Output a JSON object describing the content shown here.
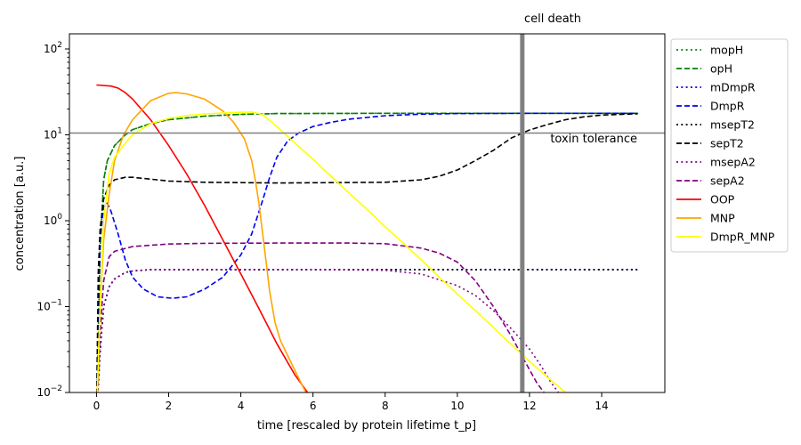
{
  "chart_data": {
    "type": "line",
    "xlabel": "time [rescaled by protein lifetime t_p]",
    "ylabel": "concentration [a.u.]",
    "xlim": [
      -0.75,
      15.75
    ],
    "ylim": [
      0.01,
      150
    ],
    "yscale": "log",
    "x_ticks": [
      0,
      2,
      4,
      6,
      8,
      10,
      12,
      14
    ],
    "y_ticks": [
      {
        "value": 0.01,
        "base": "10",
        "exp": "−2"
      },
      {
        "value": 0.1,
        "base": "10",
        "exp": "−1"
      },
      {
        "value": 1,
        "base": "10",
        "exp": "0"
      },
      {
        "value": 10,
        "base": "10",
        "exp": "1"
      },
      {
        "value": 100,
        "base": "10",
        "exp": "2"
      }
    ],
    "grid": false,
    "legend_position": "outside-right",
    "annotations": {
      "cell_death": {
        "label": "cell death",
        "x": 11.8
      },
      "toxin_tolerance": {
        "label": "toxin tolerance",
        "y": 10.5
      }
    },
    "series": [
      {
        "name": "mopH",
        "color": "#008000",
        "dash": "dotted",
        "points": [
          [
            0,
            0.005
          ],
          [
            0.1,
            0.5
          ],
          [
            0.2,
            3
          ],
          [
            0.3,
            5
          ],
          [
            0.5,
            7.5
          ],
          [
            0.8,
            10
          ],
          [
            1,
            11.5
          ],
          [
            1.5,
            13.5
          ],
          [
            2,
            15
          ],
          [
            3,
            16.5
          ],
          [
            4,
            17.3
          ],
          [
            5,
            17.7
          ],
          [
            8,
            17.8
          ],
          [
            15,
            17.8
          ]
        ]
      },
      {
        "name": "opH",
        "color": "#008000",
        "dash": "dashed",
        "points": [
          [
            0,
            0.005
          ],
          [
            0.1,
            0.5
          ],
          [
            0.2,
            3
          ],
          [
            0.3,
            5
          ],
          [
            0.5,
            7.5
          ],
          [
            0.8,
            10
          ],
          [
            1,
            11.5
          ],
          [
            1.5,
            13.5
          ],
          [
            2,
            15
          ],
          [
            3,
            16.5
          ],
          [
            4,
            17.3
          ],
          [
            5,
            17.7
          ],
          [
            8,
            17.8
          ],
          [
            15,
            17.8
          ]
        ]
      },
      {
        "name": "mDmpR",
        "color": "#0000cc",
        "dash": "dotted",
        "points": [
          [
            0,
            0.005
          ],
          [
            0.1,
            0.03
          ],
          [
            0.2,
            0.1
          ],
          [
            0.35,
            0.17
          ],
          [
            0.5,
            0.21
          ],
          [
            0.8,
            0.25
          ],
          [
            1,
            0.26
          ],
          [
            1.5,
            0.27
          ],
          [
            2,
            0.27
          ],
          [
            15,
            0.27
          ]
        ]
      },
      {
        "name": "DmpR",
        "color": "#0000ee",
        "dash": "dashed",
        "points": [
          [
            0,
            0.005
          ],
          [
            0.1,
            0.6
          ],
          [
            0.2,
            1.5
          ],
          [
            0.3,
            1.6
          ],
          [
            0.4,
            1.3
          ],
          [
            0.6,
            0.7
          ],
          [
            0.8,
            0.35
          ],
          [
            1,
            0.22
          ],
          [
            1.3,
            0.16
          ],
          [
            1.7,
            0.13
          ],
          [
            2.1,
            0.125
          ],
          [
            2.5,
            0.13
          ],
          [
            3,
            0.16
          ],
          [
            3.5,
            0.22
          ],
          [
            4,
            0.4
          ],
          [
            4.3,
            0.7
          ],
          [
            4.6,
            1.7
          ],
          [
            4.8,
            3.2
          ],
          [
            5,
            5.5
          ],
          [
            5.3,
            8.5
          ],
          [
            5.6,
            10.5
          ],
          [
            6,
            12.5
          ],
          [
            6.5,
            14
          ],
          [
            7,
            15.2
          ],
          [
            8,
            16.7
          ],
          [
            9,
            17.4
          ],
          [
            10,
            17.7
          ],
          [
            12,
            17.8
          ],
          [
            15,
            17.8
          ]
        ]
      },
      {
        "name": "msepT2",
        "color": "#000000",
        "dash": "dotted",
        "points": [
          [
            0,
            0.005
          ],
          [
            0.1,
            0.03
          ],
          [
            0.2,
            0.1
          ],
          [
            0.35,
            0.17
          ],
          [
            0.5,
            0.21
          ],
          [
            0.8,
            0.25
          ],
          [
            1,
            0.26
          ],
          [
            1.5,
            0.27
          ],
          [
            2,
            0.27
          ],
          [
            15,
            0.27
          ]
        ]
      },
      {
        "name": "sepT2",
        "color": "#000000",
        "dash": "dashed",
        "points": [
          [
            0,
            0.005
          ],
          [
            0.05,
            0.25
          ],
          [
            0.1,
            0.8
          ],
          [
            0.2,
            1.8
          ],
          [
            0.35,
            2.6
          ],
          [
            0.5,
            3
          ],
          [
            0.8,
            3.2
          ],
          [
            1,
            3.2
          ],
          [
            1.5,
            3.05
          ],
          [
            2,
            2.9
          ],
          [
            3,
            2.8
          ],
          [
            5,
            2.75
          ],
          [
            8,
            2.8
          ],
          [
            9,
            3
          ],
          [
            9.5,
            3.3
          ],
          [
            10,
            3.9
          ],
          [
            10.5,
            5
          ],
          [
            11,
            6.6
          ],
          [
            11.5,
            9.2
          ],
          [
            12,
            11.4
          ],
          [
            12.5,
            13.2
          ],
          [
            13,
            15
          ],
          [
            13.5,
            16.2
          ],
          [
            14,
            17
          ],
          [
            15,
            17.6
          ]
        ]
      },
      {
        "name": "msepA2",
        "color": "#800080",
        "dash": "dotted",
        "points": [
          [
            0,
            0.005
          ],
          [
            0.1,
            0.03
          ],
          [
            0.2,
            0.1
          ],
          [
            0.35,
            0.17
          ],
          [
            0.5,
            0.21
          ],
          [
            0.8,
            0.25
          ],
          [
            1,
            0.26
          ],
          [
            1.5,
            0.27
          ],
          [
            3,
            0.27
          ],
          [
            6,
            0.27
          ],
          [
            8,
            0.265
          ],
          [
            9,
            0.24
          ],
          [
            10,
            0.175
          ],
          [
            10.5,
            0.135
          ],
          [
            11,
            0.09
          ],
          [
            11.5,
            0.055
          ],
          [
            12,
            0.032
          ],
          [
            12.3,
            0.021
          ],
          [
            12.6,
            0.013
          ],
          [
            12.8,
            0.01
          ]
        ]
      },
      {
        "name": "sepA2",
        "color": "#800080",
        "dash": "dashed",
        "points": [
          [
            0,
            0.005
          ],
          [
            0.1,
            0.05
          ],
          [
            0.2,
            0.2
          ],
          [
            0.35,
            0.38
          ],
          [
            0.5,
            0.44
          ],
          [
            1,
            0.5
          ],
          [
            2,
            0.535
          ],
          [
            3,
            0.545
          ],
          [
            5,
            0.55
          ],
          [
            7,
            0.55
          ],
          [
            8,
            0.54
          ],
          [
            9,
            0.48
          ],
          [
            9.5,
            0.42
          ],
          [
            10,
            0.33
          ],
          [
            10.5,
            0.2
          ],
          [
            11,
            0.1
          ],
          [
            11.5,
            0.045
          ],
          [
            11.9,
            0.022
          ],
          [
            12.2,
            0.013
          ],
          [
            12.4,
            0.01
          ]
        ]
      },
      {
        "name": "OOP",
        "color": "#ff0000",
        "dash": "solid",
        "points": [
          [
            0,
            38
          ],
          [
            0.4,
            37
          ],
          [
            0.6,
            35
          ],
          [
            0.8,
            31
          ],
          [
            1,
            26
          ],
          [
            1.5,
            15
          ],
          [
            2,
            7.5
          ],
          [
            2.5,
            3.5
          ],
          [
            3,
            1.5
          ],
          [
            3.5,
            0.6
          ],
          [
            4,
            0.24
          ],
          [
            4.5,
            0.095
          ],
          [
            5,
            0.037
          ],
          [
            5.5,
            0.016
          ],
          [
            5.85,
            0.01
          ]
        ]
      },
      {
        "name": "MNP",
        "color": "#ffa500",
        "dash": "solid",
        "points": [
          [
            0,
            0.005
          ],
          [
            0.1,
            0.1
          ],
          [
            0.2,
            0.6
          ],
          [
            0.35,
            2
          ],
          [
            0.5,
            5
          ],
          [
            0.75,
            10
          ],
          [
            1,
            15
          ],
          [
            1.5,
            25
          ],
          [
            2,
            30.5
          ],
          [
            2.2,
            31
          ],
          [
            2.5,
            30
          ],
          [
            3,
            26
          ],
          [
            3.5,
            19
          ],
          [
            3.8,
            14
          ],
          [
            4.1,
            9
          ],
          [
            4.3,
            5
          ],
          [
            4.4,
            3
          ],
          [
            4.5,
            1.6
          ],
          [
            4.65,
            0.5
          ],
          [
            4.8,
            0.15
          ],
          [
            4.95,
            0.065
          ],
          [
            5.1,
            0.04
          ],
          [
            5.5,
            0.018
          ],
          [
            5.8,
            0.01
          ]
        ]
      },
      {
        "name": "DmpR_MNP",
        "color": "#ffff00",
        "dash": "solid",
        "points": [
          [
            0,
            0.005
          ],
          [
            0.1,
            0.1
          ],
          [
            0.2,
            1
          ],
          [
            0.35,
            3.5
          ],
          [
            0.5,
            5.5
          ],
          [
            0.8,
            8
          ],
          [
            1,
            10
          ],
          [
            1.5,
            13.5
          ],
          [
            2,
            15.5
          ],
          [
            2.5,
            16.8
          ],
          [
            3,
            17.5
          ],
          [
            3.5,
            18
          ],
          [
            4,
            18.3
          ],
          [
            4.3,
            18.4
          ],
          [
            4.6,
            17.3
          ],
          [
            5,
            12.5
          ],
          [
            5.5,
            8
          ],
          [
            6,
            5.2
          ],
          [
            6.5,
            3.3
          ],
          [
            7,
            2.1
          ],
          [
            7.5,
            1.35
          ],
          [
            8,
            0.85
          ],
          [
            8.5,
            0.55
          ],
          [
            9,
            0.35
          ],
          [
            9.5,
            0.22
          ],
          [
            10,
            0.14
          ],
          [
            10.5,
            0.09
          ],
          [
            11,
            0.057
          ],
          [
            11.5,
            0.036
          ],
          [
            12,
            0.023
          ],
          [
            12.5,
            0.015
          ],
          [
            13,
            0.01
          ]
        ]
      }
    ]
  }
}
